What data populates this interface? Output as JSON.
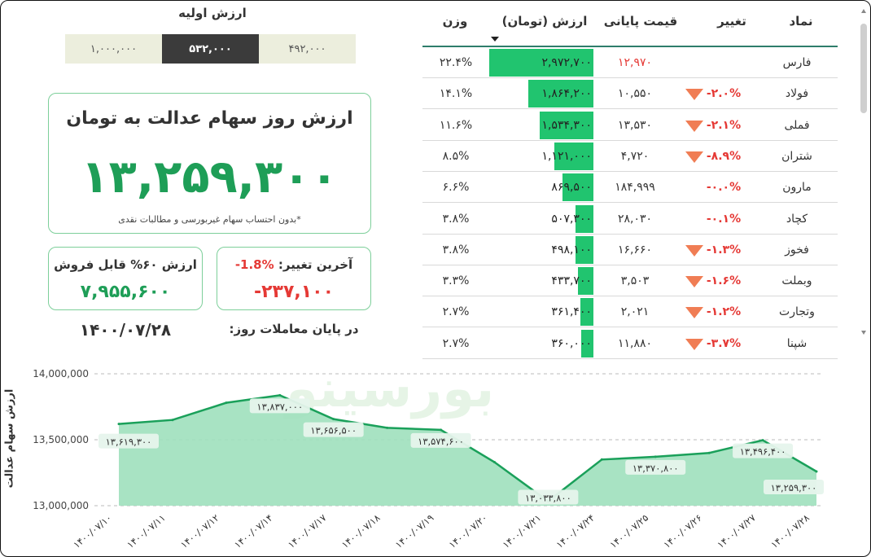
{
  "initial_value": {
    "title": "ارزش اولیه",
    "segments": [
      "۱,۰۰۰,۰۰۰",
      "۵۳۲,۰۰۰",
      "۴۹۲,۰۰۰"
    ]
  },
  "main_value": {
    "title": "ارزش روز سهام عدالت به تومان",
    "value": "۱۳,۲۵۹,۳۰۰",
    "note": "*بدون احتساب سهام غیربورسی و مطالبات نقدی"
  },
  "sellable": {
    "label": "ارزش ۶۰% قابل فروش",
    "value": "۷,۹۵۵,۶۰۰"
  },
  "last_change": {
    "label": "آخرین تغییر:",
    "percent": "-1.8%",
    "value": "-۲۳۷,۱۰۰"
  },
  "trading_day": {
    "label": "در پایان معاملات روز:",
    "date": "۱۴۰۰/۰۷/۲۸"
  },
  "table": {
    "headers": {
      "symbol": "نماد",
      "change": "تغییر",
      "price": "قیمت پایانی",
      "value": "ارزش (تومان)",
      "weight": "وزن"
    },
    "rows": [
      {
        "symbol": "فارس",
        "change": "",
        "price": "۱۲,۹۷۰",
        "price_red": true,
        "value": "۲,۹۷۲,۷۰۰",
        "weight": "۲۲.۴%",
        "down": false,
        "share": 1.0
      },
      {
        "symbol": "فولاد",
        "change": "-۲.۰%",
        "price": "۱۰,۵۵۰",
        "price_red": false,
        "value": "۱,۸۶۴,۲۰۰",
        "weight": "۱۴.۱%",
        "down": true,
        "share": 0.627
      },
      {
        "symbol": "فملی",
        "change": "-۲.۱%",
        "price": "۱۳,۵۳۰",
        "price_red": false,
        "value": "۱,۵۳۴,۳۰۰",
        "weight": "۱۱.۶%",
        "down": true,
        "share": 0.516
      },
      {
        "symbol": "شتران",
        "change": "-۸.۹%",
        "price": "۴,۷۲۰",
        "price_red": false,
        "value": "۱,۱۲۱,۰۰۰",
        "weight": "۸.۵%",
        "down": true,
        "share": 0.377
      },
      {
        "symbol": "مارون",
        "change": "-۰.۰%",
        "price": "۱۸۴,۹۹۹",
        "price_red": false,
        "value": "۸۶۹,۵۰۰",
        "weight": "۶.۶%",
        "down": false,
        "share": 0.293
      },
      {
        "symbol": "کچاد",
        "change": "-۰.۱%",
        "price": "۲۸,۰۳۰",
        "price_red": false,
        "value": "۵۰۷,۳۰۰",
        "weight": "۳.۸%",
        "down": false,
        "share": 0.171
      },
      {
        "symbol": "فخوز",
        "change": "-۱.۳%",
        "price": "۱۶,۶۶۰",
        "price_red": false,
        "value": "۴۹۸,۱۰۰",
        "weight": "۳.۸%",
        "down": true,
        "share": 0.168
      },
      {
        "symbol": "وبملت",
        "change": "-۱.۶%",
        "price": "۳,۵۰۳",
        "price_red": false,
        "value": "۴۳۳,۷۰۰",
        "weight": "۳.۳%",
        "down": true,
        "share": 0.146
      },
      {
        "symbol": "وتجارت",
        "change": "-۱.۲%",
        "price": "۲,۰۲۱",
        "price_red": false,
        "value": "۳۶۱,۴۰۰",
        "weight": "۲.۷%",
        "down": true,
        "share": 0.122
      },
      {
        "symbol": "شپنا",
        "change": "-۳.۷%",
        "price": "۱۱,۸۸۰",
        "price_red": false,
        "value": "۳۶۰,۰۰۰",
        "weight": "۲.۷%",
        "down": true,
        "share": 0.121
      }
    ]
  },
  "watermark": "بورسینو",
  "chart_data": {
    "type": "area",
    "ylabel": "ارزش سهام عدالت",
    "ylim": [
      13000000,
      14000000
    ],
    "ytick_values": [
      13000000,
      13500000,
      14000000
    ],
    "ytick_labels": [
      "13,000,000",
      "13,500,000",
      "14,000,000"
    ],
    "categories": [
      "۱۴۰۰/۰۷/۱۰",
      "۱۴۰۰/۰۷/۱۱",
      "۱۴۰۰/۰۷/۱۲",
      "۱۴۰۰/۰۷/۱۴",
      "۱۴۰۰/۰۷/۱۷",
      "۱۴۰۰/۰۷/۱۸",
      "۱۴۰۰/۰۷/۱۹",
      "۱۴۰۰/۰۷/۲۰",
      "۱۴۰۰/۰۷/۲۱",
      "۱۴۰۰/۰۷/۲۴",
      "۱۴۰۰/۰۷/۲۵",
      "۱۴۰۰/۰۷/۲۶",
      "۱۴۰۰/۰۷/۲۷",
      "۱۴۰۰/۰۷/۲۸"
    ],
    "values": [
      13619300,
      13650000,
      13780000,
      13837000,
      13656500,
      13590000,
      13574600,
      13330000,
      13033800,
      13350000,
      13370800,
      13400000,
      13496400,
      13259300
    ],
    "data_labels": [
      "۱۳,۶۱۹,۳۰۰",
      "",
      "",
      "۱۳,۸۳۷,۰۰۰",
      "۱۳,۶۵۶,۵۰۰",
      "",
      "۱۳,۵۷۴,۶۰۰",
      "",
      "۱۳,۰۳۳,۸۰۰",
      "",
      "۱۳,۳۷۰,۸۰۰",
      "",
      "۱۳,۴۹۶,۴۰۰",
      "۱۳,۲۵۹,۳۰۰"
    ],
    "grid": "horizontal dashed",
    "fill_color": "#9fe0bd",
    "line_color": "#1aa05a"
  }
}
